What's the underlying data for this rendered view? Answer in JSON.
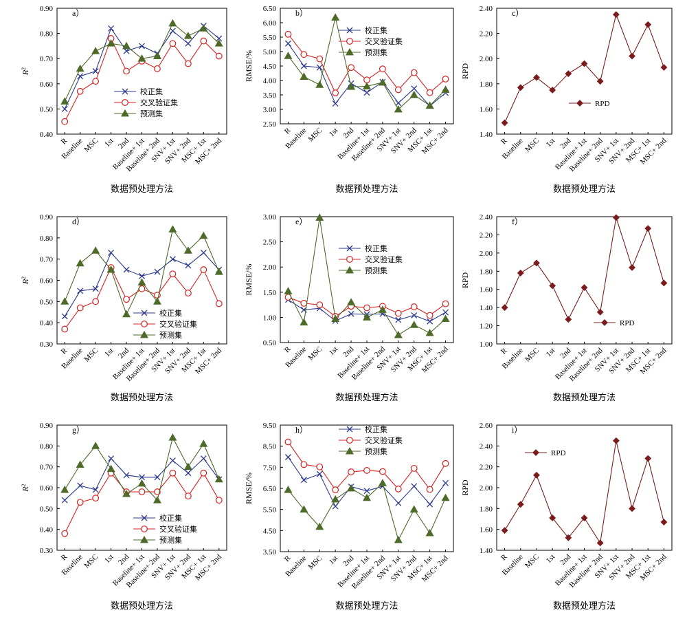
{
  "figure": {
    "colors": {
      "calibration": "#2b3a8c",
      "cross_validation": "#d42020",
      "prediction": "#4d6a28",
      "rpd": "#7a1c1c",
      "frame": "#000000"
    },
    "categories": [
      "R",
      "Baseline",
      "MSC",
      "1st",
      "2nd",
      "Baseline+ 1st",
      "Baseline+ 2nd",
      "SNV+ 1st",
      "SNV+ 2nd",
      "MSC+ 1st",
      "MSC+ 2nd"
    ]
  },
  "chart_data": [
    {
      "type": "line",
      "panel": "a）",
      "ylabel": "R2",
      "xlabel": "数据预处理方法",
      "ylim": [
        0.4,
        0.9
      ],
      "yticks": [
        "0.40",
        "0.50",
        "0.60",
        "0.70",
        "0.80",
        "0.90"
      ],
      "legend_position": "center-right",
      "grid": false,
      "series": [
        {
          "name": "校正集",
          "marker": "x",
          "values": [
            0.5,
            0.63,
            0.65,
            0.82,
            0.73,
            0.75,
            0.72,
            0.81,
            0.76,
            0.83,
            0.78
          ]
        },
        {
          "name": "交叉验证集",
          "marker": "circle",
          "values": [
            0.45,
            0.57,
            0.61,
            0.78,
            0.65,
            0.69,
            0.66,
            0.76,
            0.68,
            0.77,
            0.71
          ]
        },
        {
          "name": "预测集",
          "marker": "triangle",
          "values": [
            0.53,
            0.66,
            0.73,
            0.76,
            0.75,
            0.7,
            0.71,
            0.84,
            0.79,
            0.82,
            0.76
          ]
        }
      ]
    },
    {
      "type": "line",
      "panel": "b）",
      "ylabel": "RMSE/%",
      "xlabel": "数据预处理方法",
      "ylim": [
        2.5,
        6.5
      ],
      "yticks": [
        "2.50",
        "3.00",
        "3.50",
        "4.00",
        "4.50",
        "5.00",
        "5.50",
        "6.00",
        "6.50"
      ],
      "legend_position": "top-right",
      "grid": false,
      "series": [
        {
          "name": "校正集",
          "marker": "x",
          "values": [
            5.28,
            4.5,
            4.45,
            3.2,
            3.9,
            3.58,
            3.95,
            3.22,
            3.72,
            3.12,
            3.57
          ]
        },
        {
          "name": "交叉验证集",
          "marker": "circle",
          "values": [
            5.6,
            4.9,
            4.75,
            3.57,
            4.45,
            4.02,
            4.4,
            3.68,
            4.27,
            3.58,
            4.05
          ]
        },
        {
          "name": "预测集",
          "marker": "triangle",
          "values": [
            4.85,
            4.13,
            3.85,
            6.18,
            3.78,
            3.8,
            3.93,
            3.0,
            3.5,
            3.13,
            3.68
          ]
        }
      ]
    },
    {
      "type": "line",
      "panel": "c）",
      "ylabel": "RPD",
      "xlabel": "数据预处理方法",
      "ylim": [
        1.4,
        2.4
      ],
      "yticks": [
        "1.40",
        "1.60",
        "1.80",
        "2.00",
        "2.20",
        "2.40"
      ],
      "legend_position": "center-right",
      "grid": false,
      "series": [
        {
          "name": "RPD",
          "marker": "diamond",
          "values": [
            1.49,
            1.77,
            1.85,
            1.75,
            1.88,
            1.96,
            1.82,
            2.35,
            2.02,
            2.27,
            1.93
          ]
        }
      ]
    },
    {
      "type": "line",
      "panel": "d）",
      "ylabel": "R2",
      "xlabel": "数据预处理方法",
      "ylim": [
        0.3,
        0.9
      ],
      "yticks": [
        "0.30",
        "0.40",
        "0.50",
        "0.60",
        "0.70",
        "0.80",
        "0.90"
      ],
      "legend_position": "bottom-center",
      "grid": false,
      "series": [
        {
          "name": "校正集",
          "marker": "x",
          "values": [
            0.43,
            0.55,
            0.56,
            0.73,
            0.65,
            0.62,
            0.64,
            0.7,
            0.67,
            0.73,
            0.65
          ]
        },
        {
          "name": "交叉验证集",
          "marker": "circle",
          "values": [
            0.37,
            0.47,
            0.5,
            0.66,
            0.51,
            0.56,
            0.53,
            0.63,
            0.54,
            0.65,
            0.49
          ]
        },
        {
          "name": "预测集",
          "marker": "triangle",
          "values": [
            0.5,
            0.68,
            0.74,
            0.65,
            0.44,
            0.59,
            0.5,
            0.84,
            0.74,
            0.81,
            0.64
          ]
        }
      ]
    },
    {
      "type": "line",
      "panel": "e）",
      "ylabel": "RMSE/%",
      "xlabel": "数据预处理方法",
      "ylim": [
        0.5,
        3.0
      ],
      "yticks": [
        "0.50",
        "1.00",
        "1.50",
        "2.00",
        "2.50",
        "3.00"
      ],
      "legend_position": "center-right",
      "grid": false,
      "series": [
        {
          "name": "校正集",
          "marker": "x",
          "values": [
            1.35,
            1.15,
            1.18,
            0.93,
            1.07,
            1.06,
            1.07,
            0.95,
            1.04,
            0.92,
            1.1
          ]
        },
        {
          "name": "交叉验证集",
          "marker": "circle",
          "values": [
            1.4,
            1.28,
            1.25,
            1.02,
            1.22,
            1.19,
            1.22,
            1.08,
            1.21,
            1.04,
            1.27
          ]
        },
        {
          "name": "预测集",
          "marker": "triangle",
          "values": [
            1.52,
            0.9,
            2.98,
            0.97,
            1.3,
            1.0,
            1.15,
            0.65,
            0.85,
            0.69,
            0.97
          ]
        }
      ]
    },
    {
      "type": "line",
      "panel": "f）",
      "ylabel": "RPD",
      "xlabel": "数据预处理方法",
      "ylim": [
        1.0,
        2.4
      ],
      "yticks": [
        "1.00",
        "1.20",
        "1.40",
        "1.60",
        "1.80",
        "2.00",
        "2.20",
        "2.40"
      ],
      "legend_position": "bottom-right",
      "grid": false,
      "series": [
        {
          "name": "RPD",
          "marker": "diamond",
          "values": [
            1.4,
            1.78,
            1.89,
            1.64,
            1.27,
            1.62,
            1.35,
            2.39,
            1.84,
            2.27,
            1.67
          ]
        }
      ]
    },
    {
      "type": "line",
      "panel": "g）",
      "ylabel": "R2",
      "xlabel": "数据预处理方法",
      "ylim": [
        0.3,
        0.9
      ],
      "yticks": [
        "0.30",
        "0.40",
        "0.50",
        "0.60",
        "0.70",
        "0.80",
        "0.90"
      ],
      "legend_position": "bottom-center",
      "grid": false,
      "series": [
        {
          "name": "校正集",
          "marker": "x",
          "values": [
            0.54,
            0.61,
            0.59,
            0.74,
            0.66,
            0.65,
            0.65,
            0.73,
            0.67,
            0.74,
            0.64
          ]
        },
        {
          "name": "交叉验证集",
          "marker": "circle",
          "values": [
            0.38,
            0.53,
            0.55,
            0.67,
            0.58,
            0.58,
            0.58,
            0.67,
            0.56,
            0.67,
            0.54
          ]
        },
        {
          "name": "预测集",
          "marker": "triangle",
          "values": [
            0.59,
            0.71,
            0.8,
            0.69,
            0.57,
            0.62,
            0.54,
            0.84,
            0.7,
            0.81,
            0.64
          ]
        }
      ]
    },
    {
      "type": "line",
      "panel": "h）",
      "ylabel": "RMSE/%",
      "xlabel": "数据预处理方法",
      "ylim": [
        3.5,
        9.5
      ],
      "yticks": [
        "3.50",
        "4.50",
        "5.50",
        "6.50",
        "7.50",
        "8.50",
        "9.50"
      ],
      "legend_position": "top-right",
      "grid": false,
      "series": [
        {
          "name": "校正集",
          "marker": "x",
          "values": [
            7.98,
            6.9,
            7.18,
            5.65,
            6.58,
            6.38,
            6.6,
            5.8,
            6.6,
            5.75,
            6.75
          ]
        },
        {
          "name": "交叉验证集",
          "marker": "circle",
          "values": [
            8.7,
            7.63,
            7.52,
            6.43,
            7.28,
            7.35,
            7.3,
            6.47,
            7.45,
            6.45,
            7.68
          ]
        },
        {
          "name": "预测集",
          "marker": "triangle",
          "values": [
            6.43,
            5.5,
            4.68,
            5.98,
            6.5,
            6.05,
            6.75,
            4.05,
            5.5,
            4.38,
            6.05
          ]
        }
      ]
    },
    {
      "type": "line",
      "panel": "i）",
      "ylabel": "RPD",
      "xlabel": "数据预处理方法",
      "ylim": [
        1.4,
        2.6
      ],
      "yticks": [
        "1.40",
        "1.60",
        "1.80",
        "2.00",
        "2.20",
        "2.40",
        "2.60"
      ],
      "legend_position": "top-left",
      "grid": false,
      "series": [
        {
          "name": "RPD",
          "marker": "diamond",
          "values": [
            1.59,
            1.84,
            2.12,
            1.71,
            1.52,
            1.71,
            1.47,
            2.45,
            1.8,
            2.28,
            1.67
          ]
        }
      ]
    }
  ]
}
